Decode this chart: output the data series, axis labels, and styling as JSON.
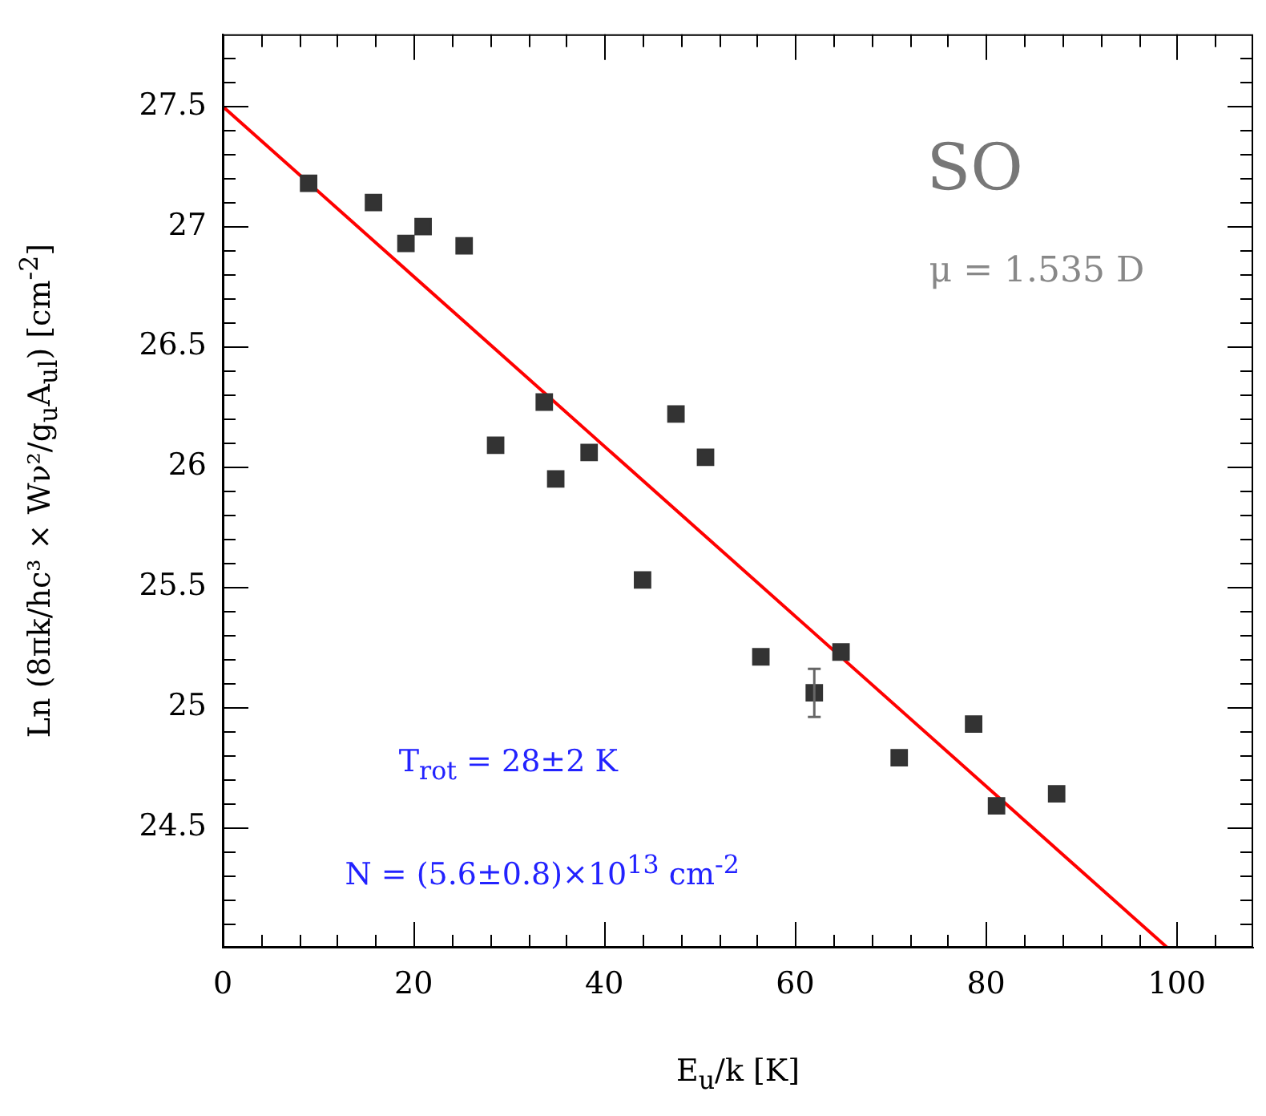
{
  "chart_data": {
    "type": "scatter",
    "xlabel": "E$_{u}$/k [K]",
    "ylabel": "Ln (8πk/hc³ × Wν²/g$_{u}$A$_{ul}$) [cm$^{-2}$]",
    "annotations": [
      "SO",
      "μ = 1.535 D",
      "T$_{rot}$ = 28±2 K",
      "N = (5.6±0.8)×10$^{13}$ cm$^{-2}$"
    ],
    "xlim": [
      0,
      108
    ],
    "ylim": [
      24,
      27.8
    ],
    "xticks": [
      0,
      {
        "value": 4,
        "label": null
      },
      {
        "value": 8,
        "label": null
      },
      {
        "value": 12,
        "label": null
      },
      {
        "value": 16,
        "label": null
      },
      20,
      {
        "value": 24,
        "label": null
      },
      {
        "value": 28,
        "label": null
      },
      {
        "value": 32,
        "label": null
      },
      {
        "value": 36,
        "label": null
      },
      40,
      {
        "value": 44,
        "label": null
      },
      {
        "value": 48,
        "label": null
      },
      {
        "value": 52,
        "label": null
      },
      {
        "value": 56,
        "label": null
      },
      60,
      {
        "value": 64,
        "label": null
      },
      {
        "value": 68,
        "label": null
      },
      {
        "value": 72,
        "label": null
      },
      {
        "value": 76,
        "label": null
      },
      80,
      {
        "value": 84,
        "label": null
      },
      {
        "value": 88,
        "label": null
      },
      {
        "value": 92,
        "label": null
      },
      {
        "value": 96,
        "label": null
      },
      100,
      {
        "value": 104,
        "label": null
      }
    ],
    "yticks": [
      {
        "value": 24.1,
        "label": null
      },
      {
        "value": 24.2,
        "label": null
      },
      {
        "value": 24.3,
        "label": null
      },
      {
        "value": 24.4,
        "label": null
      },
      24.5,
      {
        "value": 24.6,
        "label": null
      },
      {
        "value": 24.7,
        "label": null
      },
      {
        "value": 24.8,
        "label": null
      },
      {
        "value": 24.9,
        "label": null
      },
      25,
      {
        "value": 25.1,
        "label": null
      },
      {
        "value": 25.2,
        "label": null
      },
      {
        "value": 25.3,
        "label": null
      },
      {
        "value": 25.4,
        "label": null
      },
      25.5,
      {
        "value": 25.6,
        "label": null
      },
      {
        "value": 25.7,
        "label": null
      },
      {
        "value": 25.8,
        "label": null
      },
      {
        "value": 25.9,
        "label": null
      },
      26,
      {
        "value": 26.1,
        "label": null
      },
      {
        "value": 26.2,
        "label": null
      },
      {
        "value": 26.3,
        "label": null
      },
      {
        "value": 26.4,
        "label": null
      },
      26.5,
      {
        "value": 26.6,
        "label": null
      },
      {
        "value": 26.7,
        "label": null
      },
      {
        "value": 26.8,
        "label": null
      },
      {
        "value": 26.9,
        "label": null
      },
      27,
      {
        "value": 27.1,
        "label": null
      },
      {
        "value": 27.2,
        "label": null
      },
      {
        "value": 27.3,
        "label": null
      },
      {
        "value": 27.4,
        "label": null
      },
      27.5,
      {
        "value": 27.6,
        "label": null
      },
      {
        "value": 27.7,
        "label": null
      }
    ],
    "marker": "square",
    "grid": false,
    "legend": false,
    "series": [
      {
        "type": "scatter",
        "color": "#333333",
        "x": [
          9.0,
          15.8,
          19.2,
          21.0,
          25.3,
          28.6,
          33.7,
          34.9,
          38.4,
          44.0,
          47.5,
          50.6,
          56.4,
          62.0,
          64.8,
          70.9,
          78.7,
          81.1,
          87.4
        ],
        "values": [
          27.18,
          27.1,
          26.93,
          27.0,
          26.92,
          26.09,
          26.27,
          25.95,
          26.06,
          25.53,
          26.22,
          26.04,
          25.21,
          25.06,
          25.23,
          24.79,
          24.93,
          24.59,
          24.64
        ],
        "errors": [
          null,
          null,
          null,
          null,
          null,
          null,
          null,
          null,
          null,
          null,
          null,
          null,
          null,
          0.1,
          null,
          null,
          null,
          null,
          null
        ]
      },
      {
        "type": "line",
        "color": "#ff0000",
        "x": [
          0,
          99
        ],
        "values": [
          27.5,
          24.0
        ],
        "marker": "none"
      }
    ]
  }
}
